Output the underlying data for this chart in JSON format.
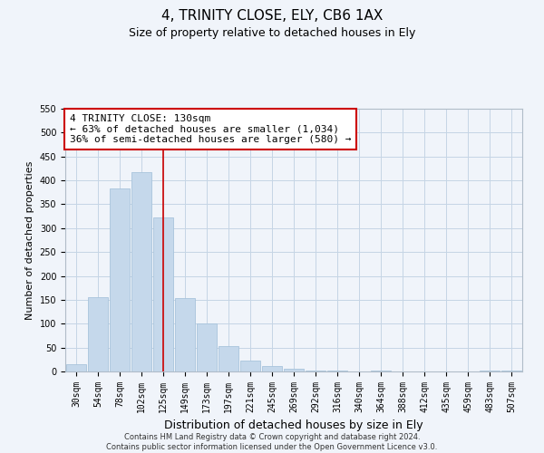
{
  "title": "4, TRINITY CLOSE, ELY, CB6 1AX",
  "subtitle": "Size of property relative to detached houses in Ely",
  "xlabel": "Distribution of detached houses by size in Ely",
  "ylabel": "Number of detached properties",
  "categories": [
    "30sqm",
    "54sqm",
    "78sqm",
    "102sqm",
    "125sqm",
    "149sqm",
    "173sqm",
    "197sqm",
    "221sqm",
    "245sqm",
    "269sqm",
    "292sqm",
    "316sqm",
    "340sqm",
    "364sqm",
    "388sqm",
    "412sqm",
    "435sqm",
    "459sqm",
    "483sqm",
    "507sqm"
  ],
  "values": [
    15,
    155,
    383,
    418,
    322,
    153,
    100,
    54,
    22,
    12,
    5,
    1,
    2,
    0,
    1,
    0,
    0,
    0,
    0,
    1,
    2
  ],
  "bar_color": "#c5d8eb",
  "bar_edge_color": "#a8c4dc",
  "vline_index": 4,
  "vline_color": "#cc0000",
  "annotation_text": "4 TRINITY CLOSE: 130sqm\n← 63% of detached houses are smaller (1,034)\n36% of semi-detached houses are larger (580) →",
  "annotation_box_facecolor": "#ffffff",
  "annotation_box_edgecolor": "#cc0000",
  "ylim": [
    0,
    550
  ],
  "yticks": [
    0,
    50,
    100,
    150,
    200,
    250,
    300,
    350,
    400,
    450,
    500,
    550
  ],
  "footer": "Contains HM Land Registry data © Crown copyright and database right 2024.\nContains public sector information licensed under the Open Government Licence v3.0.",
  "bg_color": "#f0f4fa",
  "grid_color": "#c5d5e5",
  "title_fontsize": 11,
  "subtitle_fontsize": 9,
  "xlabel_fontsize": 9,
  "ylabel_fontsize": 8,
  "tick_fontsize": 7,
  "annotation_fontsize": 8,
  "footer_fontsize": 6
}
